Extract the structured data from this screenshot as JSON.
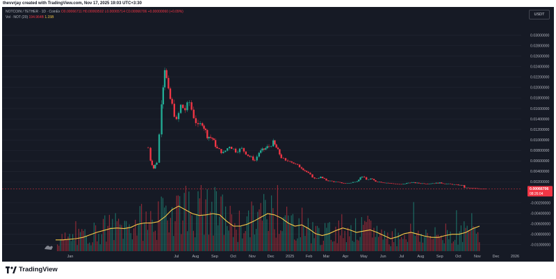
{
  "header": {
    "attribution": "thevvrjay created with TradingView.com, Nov 17, 2025 19:03 UTC+3:30"
  },
  "legend": {
    "symbol": "NOTCOIN / TETHER · 1D · CoinEx",
    "ohlc": "O0.00066711 H0.00069502 L0.00065714 C0.00066706 +0.00000060 (+0.09%)",
    "vol_label": "Vol · NOT (20)",
    "vol_value": "194.964B",
    "vol_ma": "1.15B"
  },
  "currency_button": "USDT",
  "price_badge": {
    "price": "0.00066706",
    "countdown": "08:26:04",
    "color": "#f23645"
  },
  "footer": {
    "brand": "TradingView"
  },
  "colors": {
    "background": "#161a25",
    "up": "#22ab94",
    "down": "#f23645",
    "volume_ma": "#f7c948",
    "axis_text": "#b2b5be"
  },
  "chart_data": {
    "type": "candlestick",
    "title": "NOTCOIN / TETHER · 1D · CoinEx",
    "x_tick_labels": [
      "Jan",
      "Jul",
      "Aug",
      "Sep",
      "Oct",
      "Nov",
      "Dec",
      "2025",
      "Feb",
      "Mar",
      "Apr",
      "May",
      "Jun",
      "Jul",
      "Aug",
      "Sep",
      "Oct",
      "Nov",
      "Dec",
      "2026"
    ],
    "y_tick_labels": [
      "0.03000000",
      "0.02800000",
      "0.02600000",
      "0.02400000",
      "0.02200000",
      "0.02000000",
      "0.01800000",
      "0.01600000",
      "0.01400000",
      "0.01200000",
      "0.01000000",
      "0.00800000",
      "0.00600000",
      "0.00400000",
      "0.00200000",
      "-0.00200000",
      "-0.00400000",
      "-0.00600000",
      "-0.00800000",
      "-0.01000000"
    ],
    "y_ticks": [
      0.03,
      0.028,
      0.026,
      0.024,
      0.022,
      0.02,
      0.018,
      0.016,
      0.014,
      0.012,
      0.01,
      0.008,
      0.006,
      0.004,
      0.002,
      -0.002,
      -0.004,
      -0.006,
      -0.008,
      -0.01
    ],
    "ylim": [
      -0.0107,
      0.0322
    ],
    "price_series": {
      "name": "NOT/USDT close",
      "dates": [
        "2024-05-16",
        "2024-05-20",
        "2024-05-25",
        "2024-05-30",
        "2024-06-03",
        "2024-06-07",
        "2024-06-12",
        "2024-06-18",
        "2024-06-24",
        "2024-07-01",
        "2024-07-08",
        "2024-07-15",
        "2024-07-22",
        "2024-07-29",
        "2024-08-05",
        "2024-08-12",
        "2024-08-20",
        "2024-08-28",
        "2024-09-05",
        "2024-09-15",
        "2024-09-25",
        "2024-10-05",
        "2024-10-15",
        "2024-10-25",
        "2024-11-05",
        "2024-11-12",
        "2024-11-20",
        "2024-11-28",
        "2024-12-05",
        "2024-12-10",
        "2024-12-18",
        "2024-12-25",
        "2025-01-01",
        "2025-01-10",
        "2025-01-20",
        "2025-01-28",
        "2025-02-03",
        "2025-02-10",
        "2025-02-20",
        "2025-03-01",
        "2025-03-10",
        "2025-03-20",
        "2025-04-01",
        "2025-04-10",
        "2025-04-20",
        "2025-04-28",
        "2025-05-05",
        "2025-05-12",
        "2025-05-20",
        "2025-06-01",
        "2025-06-15",
        "2025-07-01",
        "2025-07-15",
        "2025-08-01",
        "2025-08-15",
        "2025-09-01",
        "2025-09-15",
        "2025-10-01",
        "2025-10-09",
        "2025-10-11",
        "2025-10-20",
        "2025-11-01",
        "2025-11-17"
      ],
      "values": [
        0.0085,
        0.0062,
        0.0046,
        0.0058,
        0.011,
        0.0175,
        0.024,
        0.019,
        0.0165,
        0.0135,
        0.0165,
        0.0158,
        0.0172,
        0.0145,
        0.0125,
        0.0133,
        0.0108,
        0.0103,
        0.0083,
        0.0075,
        0.0089,
        0.0079,
        0.0083,
        0.0071,
        0.0061,
        0.0076,
        0.0082,
        0.0088,
        0.0095,
        0.0085,
        0.0067,
        0.0059,
        0.0061,
        0.0053,
        0.0047,
        0.0039,
        0.0033,
        0.0026,
        0.0029,
        0.0023,
        0.0021,
        0.0019,
        0.0017,
        0.0018,
        0.0022,
        0.0031,
        0.0024,
        0.0026,
        0.0021,
        0.0019,
        0.0017,
        0.0015,
        0.0019,
        0.0017,
        0.0017,
        0.0018,
        0.0016,
        0.0014,
        0.0013,
        0.0009,
        0.00082,
        0.00074,
        0.00067
      ]
    },
    "volume": {
      "name": "Vol · NOT (20)",
      "ma_series": [
        0.18,
        0.18,
        0.19,
        0.2,
        0.22,
        0.26,
        0.3,
        0.33,
        0.36,
        0.37,
        0.36,
        0.38,
        0.43,
        0.45,
        0.45,
        0.47,
        0.55,
        0.66,
        0.72,
        0.66,
        0.6,
        0.57,
        0.58,
        0.6,
        0.58,
        0.48,
        0.4,
        0.4,
        0.43,
        0.48,
        0.54,
        0.6,
        0.58,
        0.53,
        0.45,
        0.4,
        0.42,
        0.36,
        0.28,
        0.25,
        0.28,
        0.33,
        0.37,
        0.34,
        0.3,
        0.32,
        0.34,
        0.3,
        0.25,
        0.2,
        0.23,
        0.28,
        0.3,
        0.27,
        0.24,
        0.22,
        0.22,
        0.25,
        0.27,
        0.27,
        0.3,
        0.36,
        0.4
      ]
    },
    "last_price": 0.00066706,
    "grid": true,
    "legend_position": "top-left"
  }
}
